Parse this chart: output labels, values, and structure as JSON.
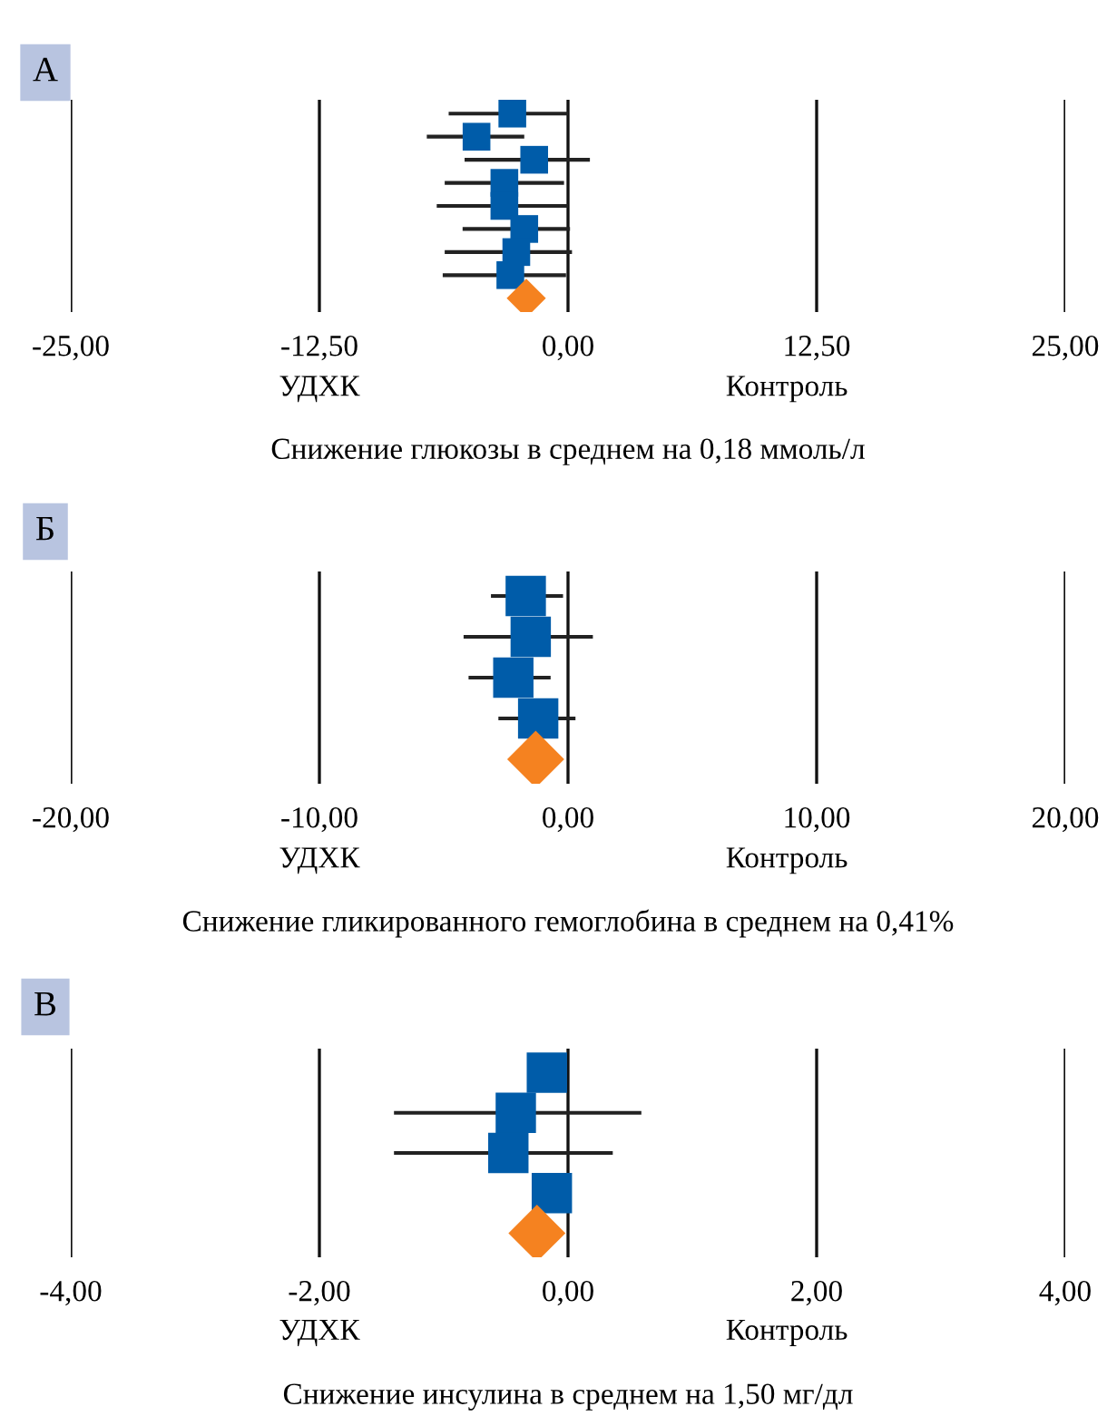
{
  "chart_data": [
    {
      "type": "scatter",
      "orientation": "horizontal",
      "title": "А",
      "xlabel": "Снижение глюкозы в среднем на 0,18 ммоль/л",
      "annotations": [
        "УДХК",
        "Контроль"
      ],
      "categories": [
        null,
        null,
        null,
        null,
        null,
        null,
        null,
        null,
        null
      ],
      "series": [
        {
          "color": "#005ca9",
          "marker": "square",
          "values": [
            -2.8,
            -4.6,
            -1.7,
            -3.2,
            -3.2,
            -2.2,
            -2.6,
            -2.9,
            null
          ],
          "errors": [
            [
              -6.0,
              0.0
            ],
            [
              -7.1,
              -2.2
            ],
            [
              -5.2,
              1.1
            ],
            [
              -6.2,
              -0.2
            ],
            [
              -6.6,
              0.0
            ],
            [
              -5.3,
              0.1
            ],
            [
              -6.2,
              0.2
            ],
            [
              -6.3,
              -0.1
            ],
            null
          ]
        },
        {
          "color": "#f58220",
          "marker": "diamond",
          "values": [
            null,
            null,
            null,
            null,
            null,
            null,
            null,
            null,
            -2.1
          ]
        }
      ],
      "xlim": [
        -25,
        25
      ],
      "xticks": [
        {
          "value": -25,
          "label": "-25,00"
        },
        {
          "value": -12.5,
          "label": "-12,50"
        },
        {
          "value": 0,
          "label": "0,00"
        },
        {
          "value": 12.5,
          "label": "12,50"
        },
        {
          "value": 25,
          "label": "25,00"
        }
      ],
      "grid": "x"
    },
    {
      "type": "scatter",
      "orientation": "horizontal",
      "title": "Б",
      "xlabel": "Снижение гликированного гемоглобина в среднем на 0,41%",
      "annotations": [
        "УДХК",
        "Контроль"
      ],
      "categories": [
        null,
        null,
        null,
        null,
        null
      ],
      "series": [
        {
          "color": "#005ca9",
          "marker": "square",
          "values": [
            -1.7,
            -1.5,
            -2.2,
            -1.2,
            null
          ],
          "errors": [
            [
              -3.1,
              -0.2
            ],
            [
              -4.2,
              1.0
            ],
            [
              -4.0,
              -0.7
            ],
            [
              -2.8,
              0.3
            ],
            null
          ]
        },
        {
          "color": "#f58220",
          "marker": "diamond",
          "values": [
            null,
            null,
            null,
            null,
            -1.3
          ]
        }
      ],
      "xlim": [
        -20,
        20
      ],
      "xticks": [
        {
          "value": -20,
          "label": "-20,00"
        },
        {
          "value": -10,
          "label": "-10,00"
        },
        {
          "value": 0,
          "label": "0,00"
        },
        {
          "value": 10,
          "label": "10,00"
        },
        {
          "value": 20,
          "label": "20,00"
        }
      ],
      "grid": "x"
    },
    {
      "type": "scatter",
      "orientation": "horizontal",
      "title": "В",
      "xlabel": "Снижение инсулина в среднем на 1,50 мг/дл",
      "annotations": [
        "УДХК",
        "Контроль"
      ],
      "categories": [
        null,
        null,
        null,
        null,
        null
      ],
      "series": [
        {
          "color": "#005ca9",
          "marker": "square",
          "values": [
            -0.17,
            -0.42,
            -0.48,
            -0.13,
            null
          ],
          "errors": [
            null,
            [
              -1.4,
              0.59
            ],
            [
              -1.4,
              0.36
            ],
            null,
            null
          ]
        },
        {
          "color": "#f58220",
          "marker": "diamond",
          "values": [
            null,
            null,
            null,
            null,
            -0.25
          ]
        }
      ],
      "xlim": [
        -4,
        4
      ],
      "xticks": [
        {
          "value": -4,
          "label": "-4,00"
        },
        {
          "value": -2,
          "label": "-2,00"
        },
        {
          "value": 0,
          "label": "0,00"
        },
        {
          "value": 2,
          "label": "2,00"
        },
        {
          "value": 4,
          "label": "4,00"
        }
      ],
      "grid": "x"
    }
  ]
}
